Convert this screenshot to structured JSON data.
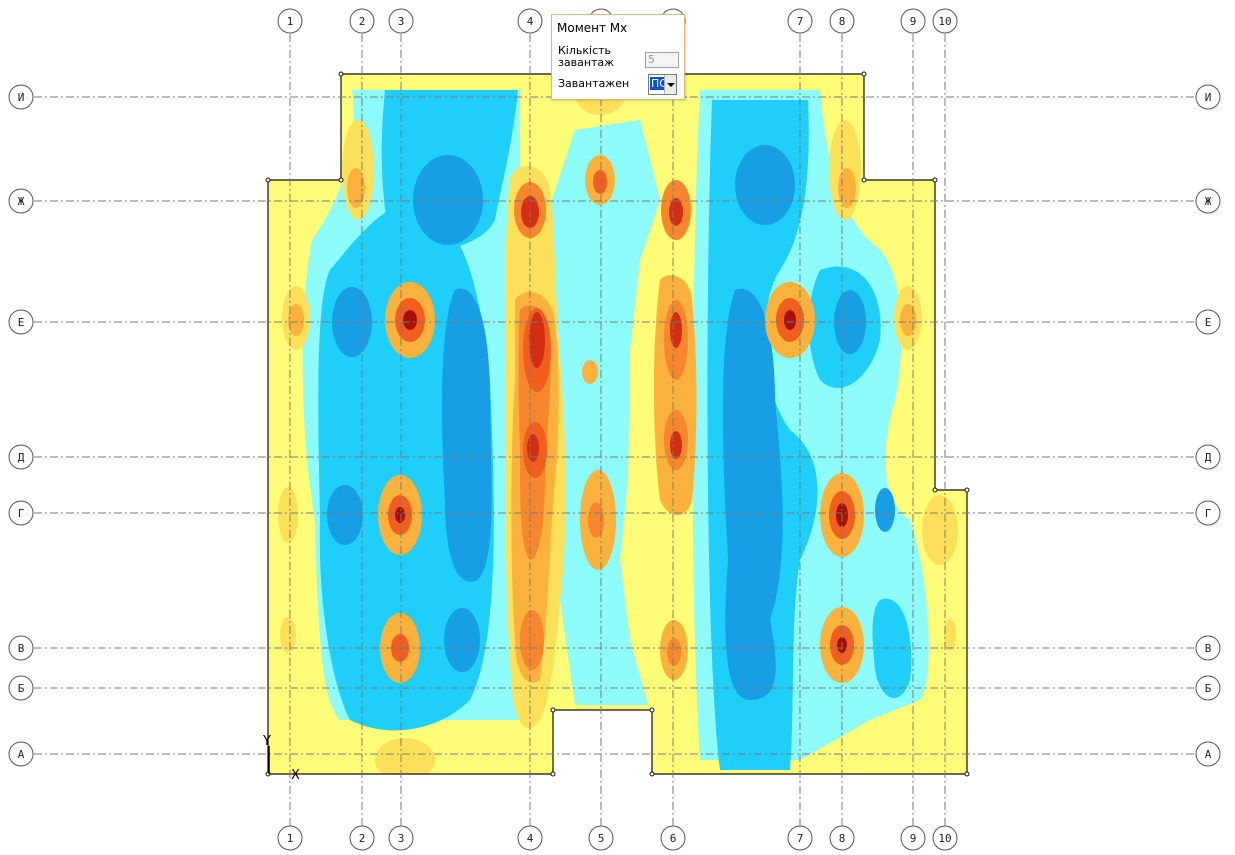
{
  "colors": {
    "background": "#ffffff",
    "gridline": "#7a7a7a",
    "outline": "#111111",
    "palette": [
      "#fdfd78",
      "#fde05a",
      "#fbb23c",
      "#f8862d",
      "#f25e1e",
      "#d32d12",
      "#a51205",
      "#8efbfb",
      "#1fcffa",
      "#179ee5",
      "#1171c7"
    ]
  },
  "grid": {
    "columns": [
      "1",
      "2",
      "3",
      "4",
      "5",
      "6",
      "7",
      "8",
      "9",
      "10"
    ],
    "rows": [
      "И",
      "Ж",
      "Е",
      "Д",
      "Г",
      "В",
      "Б",
      "А"
    ]
  },
  "axes": {
    "y_label": "Y",
    "x_label": "X"
  },
  "panel": {
    "title": "Момент Mx",
    "count_label": "Кількість завантаж",
    "count_value": "5",
    "load_label": "Завантажен",
    "load_value": "ПО"
  }
}
